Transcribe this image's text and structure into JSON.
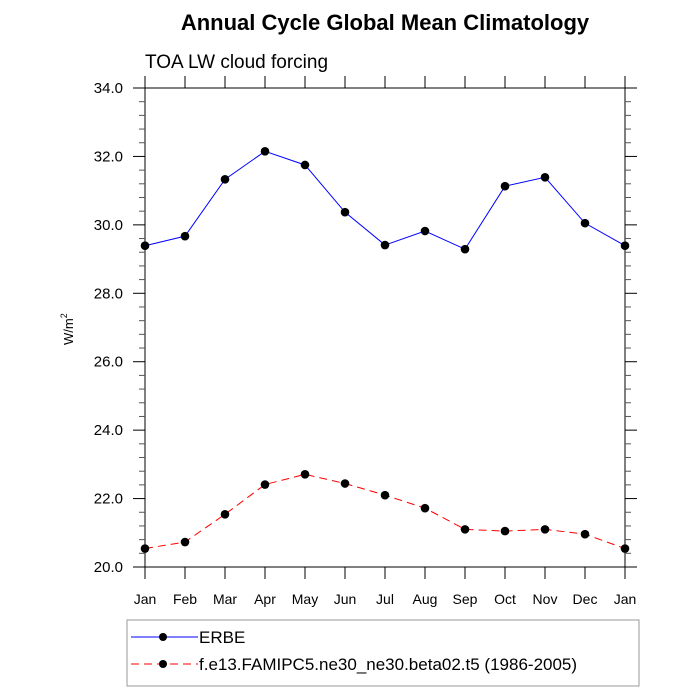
{
  "chart_data": {
    "type": "line",
    "title": "Annual Cycle Global Mean Climatology",
    "subtitle": "TOA LW cloud forcing",
    "xlabel": "",
    "ylabel": "W/m",
    "ylabel_superscript": "2",
    "categories": [
      "Jan",
      "Feb",
      "Mar",
      "Apr",
      "May",
      "Jun",
      "Jul",
      "Aug",
      "Sep",
      "Oct",
      "Nov",
      "Dec",
      "Jan"
    ],
    "ylim": [
      20.0,
      34.0
    ],
    "yticks": [
      20.0,
      22.0,
      24.0,
      26.0,
      28.0,
      30.0,
      32.0,
      34.0
    ],
    "ytick_labels": [
      "20.0",
      "22.0",
      "24.0",
      "26.0",
      "28.0",
      "30.0",
      "32.0",
      "34.0"
    ],
    "y_minor_step": 0.4,
    "grid": false,
    "legend_position": "bottom",
    "series": [
      {
        "name": "ERBE",
        "color": "#0000ff",
        "dash": "solid",
        "marker": "circle",
        "marker_color": "#000000",
        "values": [
          29.39,
          29.67,
          31.33,
          32.15,
          31.75,
          30.37,
          29.41,
          29.82,
          29.29,
          31.13,
          31.39,
          30.05,
          29.39
        ]
      },
      {
        "name": "f.e13.FAMIPC5.ne30_ne30.beta02.t5 (1986-2005)",
        "color": "#ff0000",
        "dash": "dashed",
        "marker": "circle",
        "marker_color": "#000000",
        "values": [
          20.54,
          20.73,
          21.54,
          22.41,
          22.71,
          22.44,
          22.1,
          21.72,
          21.1,
          21.05,
          21.1,
          20.96,
          20.54
        ]
      }
    ]
  }
}
